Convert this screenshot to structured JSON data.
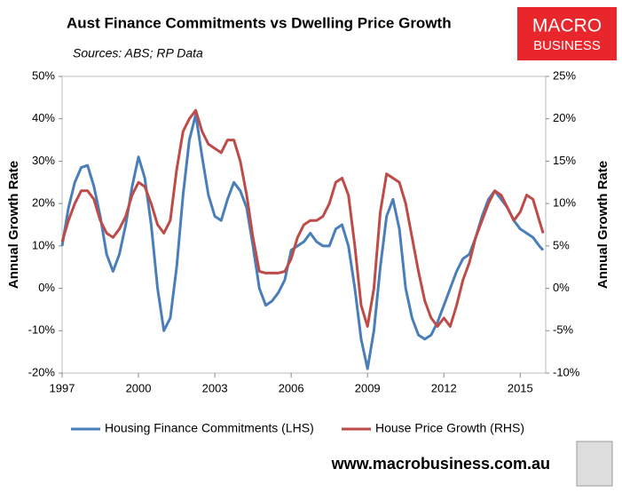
{
  "chart_data": {
    "type": "line",
    "title": "Aust Finance Commitments vs Dwelling Price Growth",
    "subtitle": "Sources: ABS; RP Data",
    "y_label": "Annual Growth Rate",
    "y2_label": "Annual Growth Rate",
    "brand": [
      "MACRO",
      "BUSINESS"
    ],
    "footer": "www.macrobusiness.com.au",
    "legend": "bottom",
    "grid": false,
    "xlim": [
      1997,
      2016
    ],
    "xticks": [
      1997,
      2000,
      2003,
      2006,
      2009,
      2012,
      2015
    ],
    "ylim": [
      -20,
      50
    ],
    "yticks": [
      {
        "value": -20,
        "label": "-20%"
      },
      {
        "value": -10,
        "label": "-10%"
      },
      {
        "value": 0,
        "label": "0%"
      },
      {
        "value": 10,
        "label": "10%"
      },
      {
        "value": 20,
        "label": "20%"
      },
      {
        "value": 30,
        "label": "30%"
      },
      {
        "value": 40,
        "label": "40%"
      },
      {
        "value": 50,
        "label": "50%"
      }
    ],
    "y2lim": [
      -10,
      25
    ],
    "y2ticks": [
      {
        "value": -10,
        "label": "-10%"
      },
      {
        "value": -5,
        "label": "-5%"
      },
      {
        "value": 0,
        "label": "0%"
      },
      {
        "value": 5,
        "label": "5%"
      },
      {
        "value": 10,
        "label": "10%"
      },
      {
        "value": 15,
        "label": "15%"
      },
      {
        "value": 20,
        "label": "20%"
      },
      {
        "value": 25,
        "label": "25%"
      }
    ],
    "x": [
      1997,
      1997.25,
      1997.5,
      1997.75,
      1998,
      1998.25,
      1998.5,
      1998.75,
      1999,
      1999.25,
      1999.5,
      1999.75,
      2000,
      2000.25,
      2000.5,
      2000.75,
      2001,
      2001.25,
      2001.5,
      2001.75,
      2002,
      2002.25,
      2002.5,
      2002.75,
      2003,
      2003.25,
      2003.5,
      2003.75,
      2004,
      2004.25,
      2004.5,
      2004.75,
      2005,
      2005.25,
      2005.5,
      2005.75,
      2006,
      2006.25,
      2006.5,
      2006.75,
      2007,
      2007.25,
      2007.5,
      2007.75,
      2008,
      2008.25,
      2008.5,
      2008.75,
      2009,
      2009.25,
      2009.5,
      2009.75,
      2010,
      2010.25,
      2010.5,
      2010.75,
      2011,
      2011.25,
      2011.5,
      2011.75,
      2012,
      2012.25,
      2012.5,
      2012.75,
      2013,
      2013.25,
      2013.5,
      2013.75,
      2014,
      2014.25,
      2014.5,
      2014.75,
      2015,
      2015.25,
      2015.5,
      2015.75,
      2015.9
    ],
    "series": [
      {
        "name": "Housing Finance Commitments (LHS)",
        "color": "#4a7ebb",
        "axis": "y",
        "values": [
          10,
          19,
          25,
          28.5,
          29,
          24,
          17,
          8,
          4,
          8,
          15,
          24,
          31,
          26,
          15,
          0,
          -10,
          -7,
          5,
          22,
          35,
          41,
          31,
          22,
          17,
          16,
          21,
          25,
          23,
          19,
          10,
          0,
          -4,
          -3,
          -1,
          2,
          9,
          10,
          11,
          13,
          11,
          10,
          10,
          14,
          15,
          10,
          0,
          -12,
          -19,
          -10,
          5,
          17,
          21,
          14,
          0,
          -7,
          -11,
          -12,
          -11,
          -8,
          -4,
          0,
          4,
          7,
          8,
          12,
          17,
          21,
          23,
          21,
          19,
          16,
          14,
          13,
          12,
          10,
          9
        ]
      },
      {
        "name": "House Price Growth (RHS)",
        "color": "#be4b48",
        "axis": "y2",
        "values": [
          5.5,
          8,
          10,
          11.5,
          11.5,
          10.5,
          8,
          6.5,
          6,
          7,
          8.5,
          11,
          12.5,
          12,
          10,
          7.5,
          6.5,
          8,
          14,
          18.5,
          20,
          21,
          18.5,
          17,
          16.5,
          16,
          17.5,
          17.5,
          15,
          11,
          6,
          2,
          1.8,
          1.8,
          1.8,
          2,
          3.5,
          6,
          7.5,
          8,
          8,
          8.5,
          10,
          12.5,
          13,
          11,
          5,
          -2,
          -4.5,
          0,
          9,
          13.5,
          13,
          12.5,
          10,
          6,
          2,
          -1.5,
          -3.5,
          -4.5,
          -3.5,
          -4.5,
          -2,
          1,
          3,
          6,
          8,
          10,
          11.5,
          11,
          9.5,
          8,
          9,
          11,
          10.5,
          8,
          6.5
        ]
      }
    ]
  }
}
